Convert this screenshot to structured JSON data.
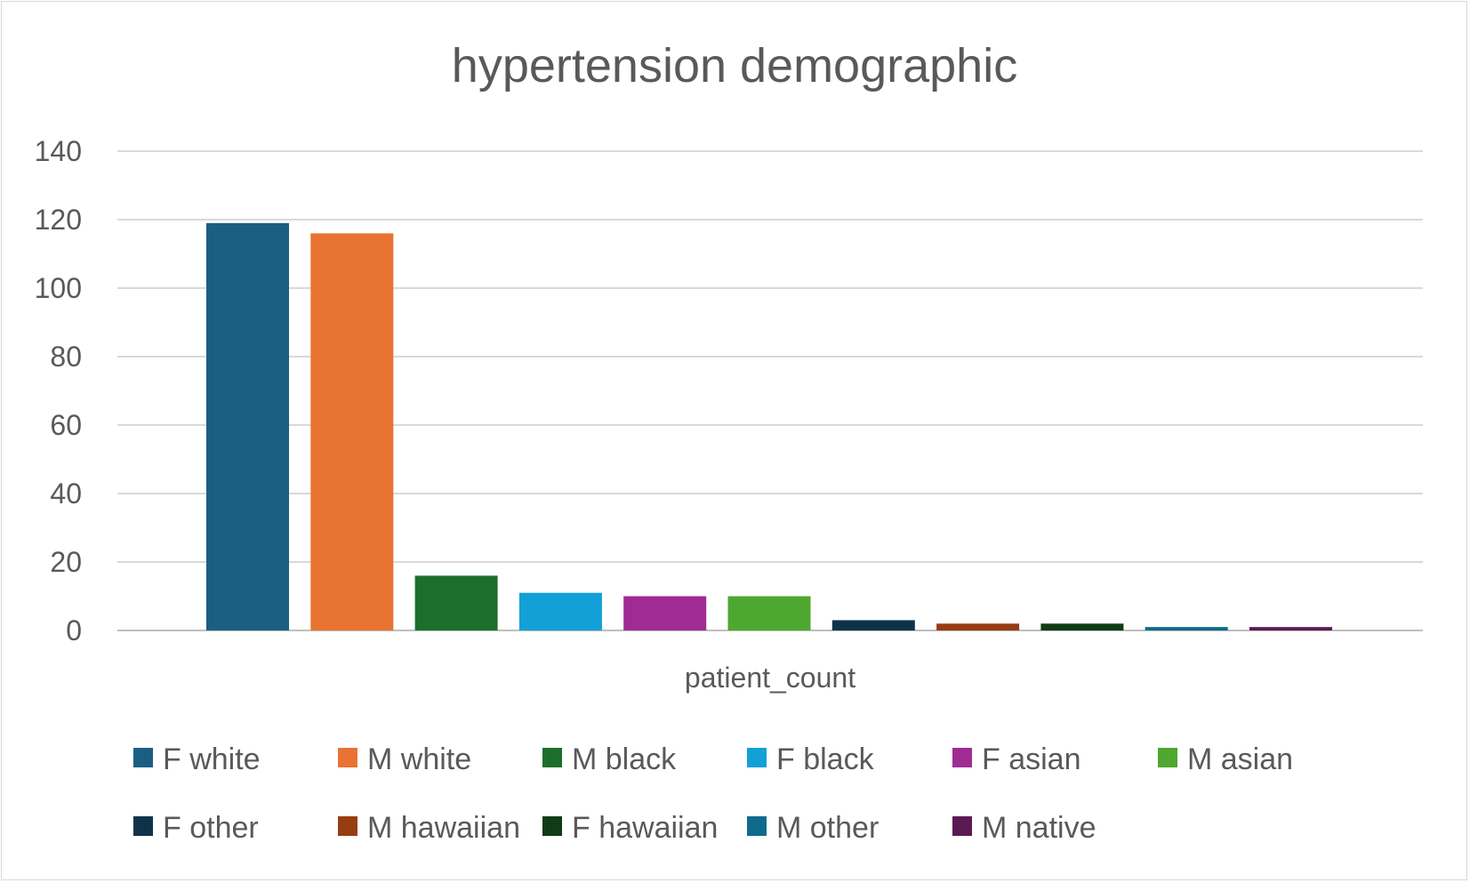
{
  "chart_data": {
    "type": "bar",
    "title": "hypertension demographic",
    "xlabel": "patient_count",
    "ylabel": "",
    "ylim": [
      0,
      140
    ],
    "yticks": [
      0,
      20,
      40,
      60,
      80,
      100,
      120,
      140
    ],
    "grid": true,
    "legend_position": "bottom",
    "categories": [
      "patient_count"
    ],
    "series": [
      {
        "name": "F white",
        "values": [
          119
        ],
        "color": "#1a5f82"
      },
      {
        "name": "M white",
        "values": [
          116
        ],
        "color": "#e97332"
      },
      {
        "name": "M black",
        "values": [
          16
        ],
        "color": "#1b6f2a"
      },
      {
        "name": "F black",
        "values": [
          11
        ],
        "color": "#12a0d6"
      },
      {
        "name": "F asian",
        "values": [
          10
        ],
        "color": "#a02b93"
      },
      {
        "name": "M asian",
        "values": [
          10
        ],
        "color": "#4ea72e"
      },
      {
        "name": "F other",
        "values": [
          3
        ],
        "color": "#0e3349"
      },
      {
        "name": "M hawaiian",
        "values": [
          2
        ],
        "color": "#963d12"
      },
      {
        "name": "F hawaiian",
        "values": [
          2
        ],
        "color": "#0f3b17"
      },
      {
        "name": "M other",
        "values": [
          1
        ],
        "color": "#0f6a8c"
      },
      {
        "name": "M native",
        "values": [
          1
        ],
        "color": "#5c1a55"
      }
    ]
  }
}
